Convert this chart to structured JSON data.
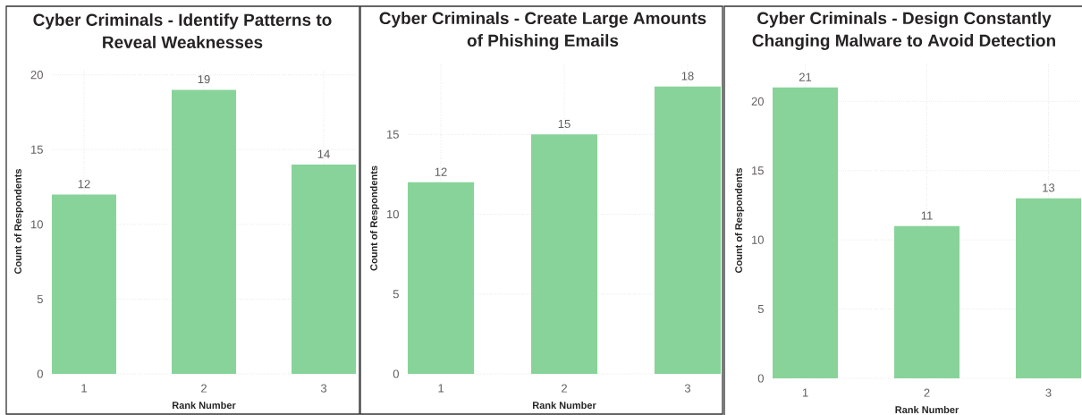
{
  "chart_data": [
    {
      "type": "bar",
      "title": "Cyber Criminals - Identify Patterns to Reveal Weaknesses",
      "xlabel": "Rank Number",
      "ylabel": "Count of Respondents",
      "categories": [
        "1",
        "2",
        "3"
      ],
      "values": [
        12,
        19,
        14
      ],
      "color": "#88d399",
      "ylim": [
        0,
        20.4
      ],
      "yticks": [
        0,
        5,
        10,
        15,
        20
      ],
      "grid": true,
      "data_labels": true
    },
    {
      "type": "bar",
      "title": "Cyber Criminals - Create Large Amounts of Phishing Emails",
      "xlabel": "Rank Number",
      "ylabel": "Count of Respondents",
      "categories": [
        "1",
        "2",
        "3"
      ],
      "values": [
        12,
        15,
        18
      ],
      "color": "#88d399",
      "ylim": [
        0,
        19.5
      ],
      "yticks": [
        0,
        5,
        10,
        15
      ],
      "grid": true,
      "data_labels": true
    },
    {
      "type": "bar",
      "title": "Cyber Criminals - Design Constantly Changing Malware to Avoid Detection",
      "xlabel": "Rank Number",
      "ylabel": "Count of Respondents",
      "categories": [
        "1",
        "2",
        "3"
      ],
      "values": [
        21,
        11,
        13
      ],
      "color": "#88d399",
      "ylim": [
        0,
        22.8
      ],
      "yticks": [
        0,
        5,
        10,
        15,
        20
      ],
      "grid": true,
      "data_labels": true
    }
  ]
}
